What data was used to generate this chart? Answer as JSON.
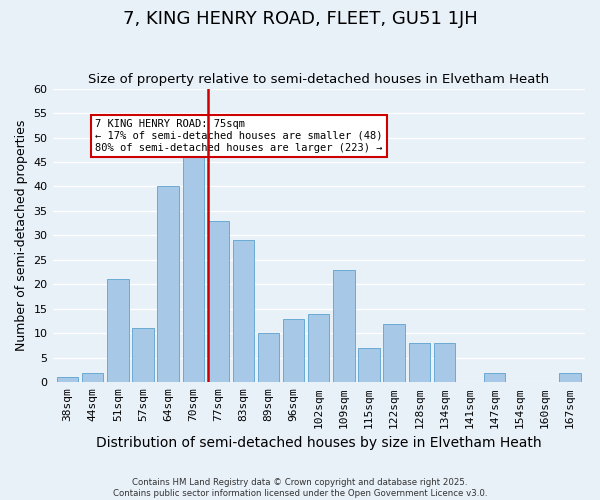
{
  "title": "7, KING HENRY ROAD, FLEET, GU51 1JH",
  "subtitle": "Size of property relative to semi-detached houses in Elvetham Heath",
  "xlabel": "Distribution of semi-detached houses by size in Elvetham Heath",
  "ylabel": "Number of semi-detached properties",
  "categories": [
    "38sqm",
    "44sqm",
    "51sqm",
    "57sqm",
    "64sqm",
    "70sqm",
    "77sqm",
    "83sqm",
    "89sqm",
    "96sqm",
    "102sqm",
    "109sqm",
    "115sqm",
    "122sqm",
    "128sqm",
    "134sqm",
    "141sqm",
    "147sqm",
    "154sqm",
    "160sqm",
    "167sqm"
  ],
  "values": [
    1,
    2,
    21,
    11,
    40,
    47,
    33,
    29,
    10,
    13,
    14,
    23,
    7,
    12,
    8,
    8,
    0,
    2,
    0,
    0,
    2
  ],
  "bar_color": "#a8c8e8",
  "bar_edge_color": "#6aaad4",
  "highlight_index": 6,
  "highlight_line_color": "#cc0000",
  "ylim": [
    0,
    60
  ],
  "yticks": [
    0,
    5,
    10,
    15,
    20,
    25,
    30,
    35,
    40,
    45,
    50,
    55,
    60
  ],
  "annotation_title": "7 KING HENRY ROAD: 75sqm",
  "annotation_line1": "← 17% of semi-detached houses are smaller (48)",
  "annotation_line2": "80% of semi-detached houses are larger (223) →",
  "annotation_box_color": "#ffffff",
  "annotation_box_edge": "#cc0000",
  "background_color": "#e8f0f8",
  "footer_line1": "Contains HM Land Registry data © Crown copyright and database right 2025.",
  "footer_line2": "Contains public sector information licensed under the Open Government Licence v3.0.",
  "title_fontsize": 13,
  "subtitle_fontsize": 9.5,
  "xlabel_fontsize": 10,
  "ylabel_fontsize": 9,
  "tick_fontsize": 8
}
